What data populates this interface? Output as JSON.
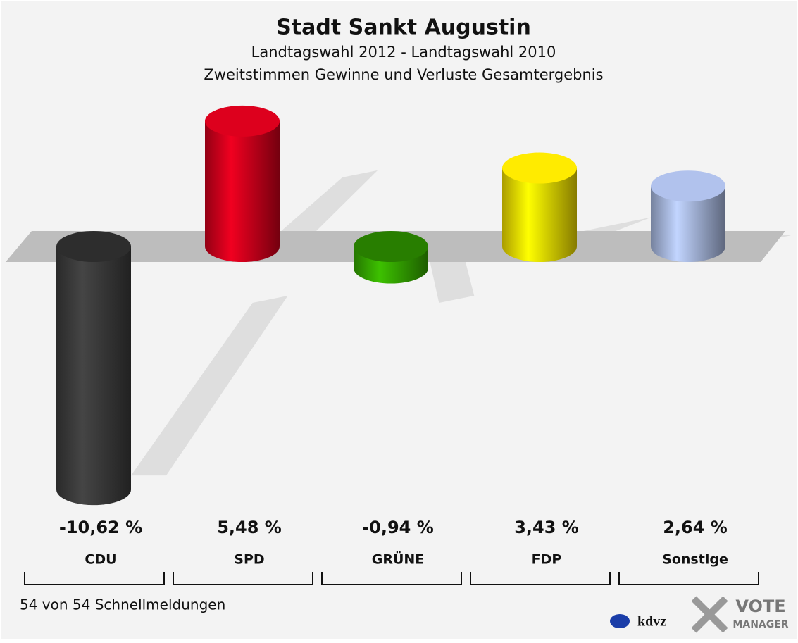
{
  "chart_data": {
    "type": "bar",
    "title": "Stadt Sankt Augustin",
    "subtitle": [
      "Landtagswahl 2012 - Landtagswahl 2010",
      "Zweitstimmen Gewinne und Verluste Gesamtergebnis"
    ],
    "categories": [
      "CDU",
      "SPD",
      "GRÜNE",
      "FDP",
      "Sonstige"
    ],
    "values": [
      -10.62,
      5.48,
      -0.94,
      3.43,
      2.64
    ],
    "value_labels": [
      "-10,62 %",
      "5,48 %",
      "-0,94 %",
      "3,43 %",
      "2,64 %"
    ],
    "colors": [
      "#3c3c3c",
      "#d2001c",
      "#35a800",
      "#f4e000",
      "#a9b9e2"
    ],
    "footnote": "54 von 54 Schnellmeldungen",
    "logo": [
      "kdvz",
      "VOTE",
      "MANAGER"
    ]
  }
}
